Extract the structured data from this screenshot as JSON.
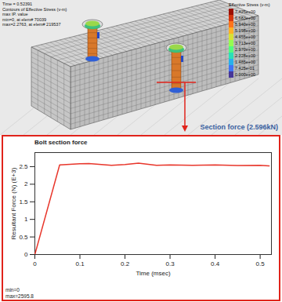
{
  "chart_data": {
    "type": "line",
    "title": "Bolt section force",
    "x_label": "Time (msec)",
    "y_label": "Resultant Force (N) (E+3)",
    "x": [
      0,
      0.055,
      0.1,
      0.12,
      0.17,
      0.2,
      0.23,
      0.27,
      0.3,
      0.35,
      0.4,
      0.45,
      0.5,
      0.52
    ],
    "values": [
      0,
      2.55,
      2.58,
      2.59,
      2.54,
      2.56,
      2.6,
      2.54,
      2.55,
      2.54,
      2.55,
      2.53,
      2.54,
      2.52
    ],
    "color": "#e8362b",
    "xlim": [
      0,
      0.525
    ],
    "ylim": [
      0,
      2.9
    ],
    "xticks": [
      0,
      0.1,
      0.2,
      0.3,
      0.4,
      0.5
    ],
    "yticks": [
      0,
      0.5,
      1,
      1.5,
      2,
      2.5
    ],
    "grid": false,
    "annotations": [
      "min=0",
      "max=2595.8"
    ]
  },
  "figure": {
    "info_lines": [
      "Time = 0.52391",
      "Contours of Effective Stress (v-m)",
      "max IP. value",
      "min=0, at elem# 70039",
      "max=2.2763, at elem# 219537"
    ],
    "legend_title": "Effective Stress (v-m)",
    "legend_values": [
      "7.425e+00",
      "6.683e+00",
      "5.940e+00",
      "5.198e+00",
      "4.455e+00",
      "3.713e+00",
      "2.970e+00",
      "2.228e+00",
      "1.485e+00",
      "7.425e-01",
      "0.000e+00"
    ],
    "section_force_label": "Section force (2.596kN)"
  }
}
